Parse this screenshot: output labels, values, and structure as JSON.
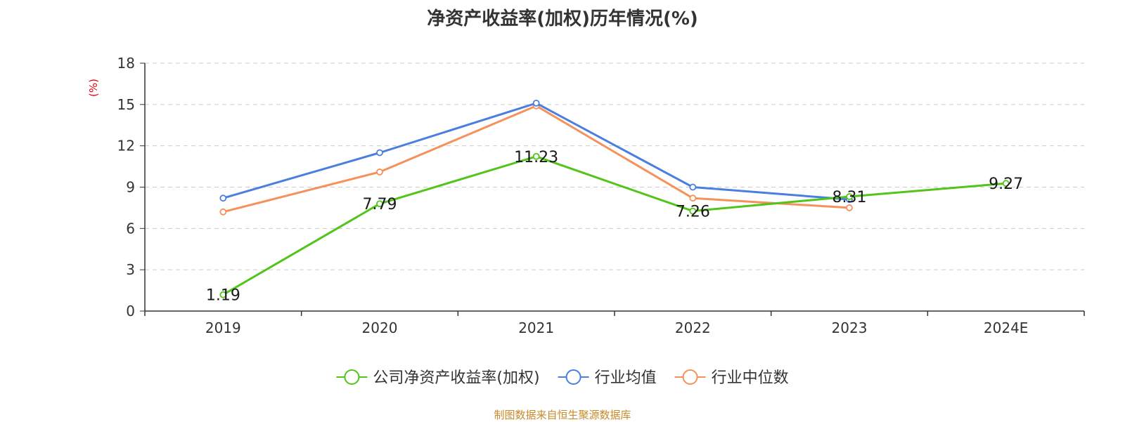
{
  "title": "净资产收益率(加权)历年情况(%)",
  "source": "制图数据来自恒生聚源数据库",
  "colors": {
    "company": "#52c41a",
    "industry_avg": "#4a7ee0",
    "industry_median": "#f5915a",
    "unit_label": "#e8000b",
    "grid": "#cccccc",
    "axis": "#333333",
    "source_note": "#c78a2a"
  },
  "chart_data": {
    "type": "line",
    "title": "净资产收益率(加权)历年情况(%)",
    "ylabel": "(%)",
    "xlabel": "",
    "categories": [
      "2019",
      "2020",
      "2021",
      "2022",
      "2023",
      "2024E"
    ],
    "ylim": [
      0,
      18
    ],
    "yticks": [
      0,
      3,
      6,
      9,
      12,
      15,
      18
    ],
    "grid": "horizontal dashed",
    "legend": "bottom-center",
    "series": [
      {
        "name": "公司净资产收益率(加权)",
        "color_key": "company",
        "values": [
          1.19,
          7.79,
          11.23,
          7.26,
          8.31,
          9.27
        ],
        "labels": [
          "1.19",
          "7.79",
          "11.23",
          "7.26",
          "8.31",
          "9.27"
        ]
      },
      {
        "name": "行业均值",
        "color_key": "industry_avg",
        "values": [
          8.2,
          11.5,
          15.1,
          9.0,
          8.1,
          null
        ]
      },
      {
        "name": "行业中位数",
        "color_key": "industry_median",
        "values": [
          7.2,
          10.1,
          14.9,
          8.2,
          7.5,
          null
        ]
      }
    ]
  }
}
